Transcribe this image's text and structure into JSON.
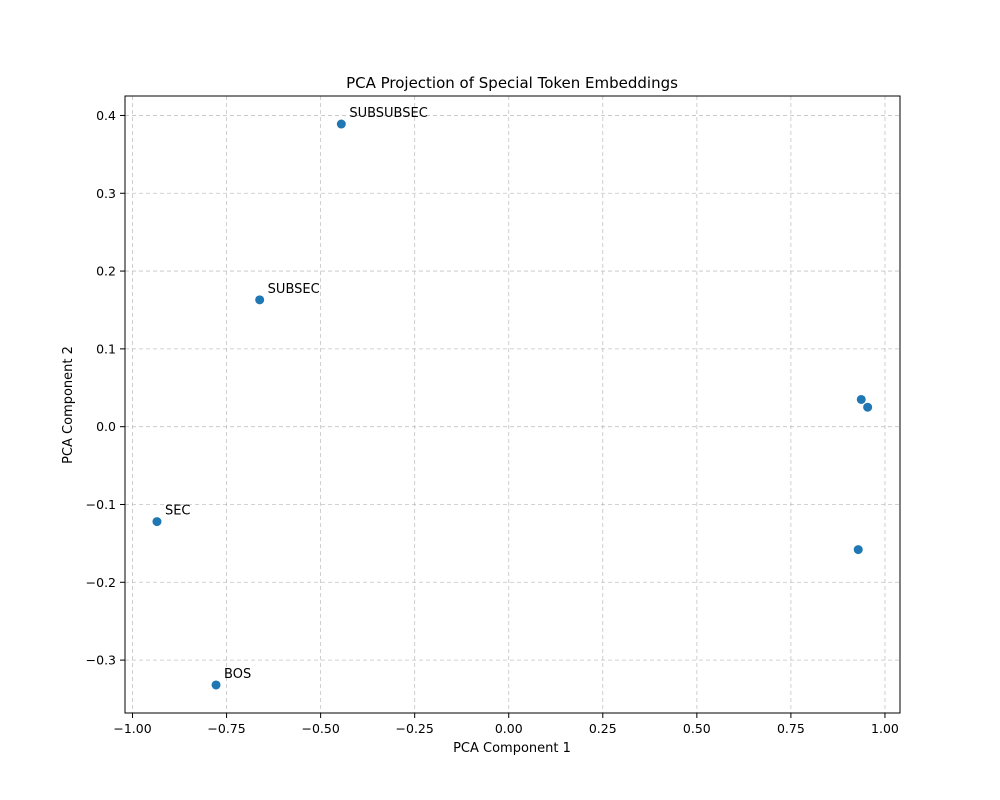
{
  "chart_data": {
    "type": "scatter",
    "title": "PCA Projection of Special Token Embeddings",
    "xlabel": "PCA Component 1",
    "ylabel": "PCA Component 2",
    "xlim": [
      -1.02,
      1.04
    ],
    "ylim": [
      -0.368,
      0.425
    ],
    "x_ticks": [
      -1.0,
      -0.75,
      -0.5,
      -0.25,
      0.0,
      0.25,
      0.5,
      0.75,
      1.0
    ],
    "x_tick_labels": [
      "−1.00",
      "−0.75",
      "−0.50",
      "−0.25",
      "0.00",
      "0.25",
      "0.50",
      "0.75",
      "1.00"
    ],
    "y_ticks": [
      -0.3,
      -0.2,
      -0.1,
      0.0,
      0.1,
      0.2,
      0.3,
      0.4
    ],
    "y_tick_labels": [
      "−0.3",
      "−0.2",
      "−0.1",
      "0.0",
      "0.1",
      "0.2",
      "0.3",
      "0.4"
    ],
    "grid": true,
    "marker_color": "#1f77b4",
    "points": [
      {
        "x": -0.445,
        "y": 0.389,
        "label": "SUBSUBSEC"
      },
      {
        "x": -0.662,
        "y": 0.163,
        "label": "SUBSEC"
      },
      {
        "x": -0.935,
        "y": -0.122,
        "label": "SEC"
      },
      {
        "x": -0.778,
        "y": -0.332,
        "label": "BOS"
      },
      {
        "x": 0.937,
        "y": 0.035,
        "label": ""
      },
      {
        "x": 0.954,
        "y": 0.025,
        "label": ""
      },
      {
        "x": 0.929,
        "y": -0.158,
        "label": ""
      }
    ]
  }
}
